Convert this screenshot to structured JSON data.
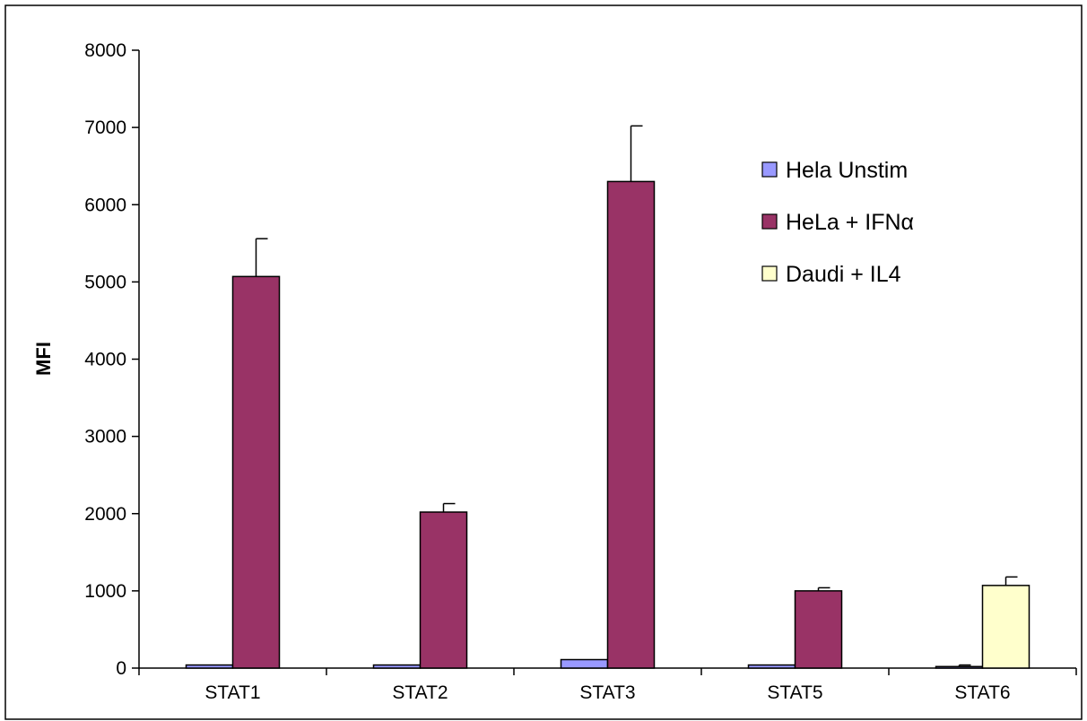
{
  "chart_data": {
    "type": "bar",
    "title": "",
    "xlabel": "",
    "ylabel": "MFI",
    "ylim": [
      0,
      8000
    ],
    "y_ticks": [
      0,
      1000,
      2000,
      3000,
      4000,
      5000,
      6000,
      7000,
      8000
    ],
    "grid": false,
    "legend_position": "top-right",
    "categories": [
      "STAT1",
      "STAT2",
      "STAT3",
      "STAT5",
      "STAT6"
    ],
    "series": [
      {
        "name": "Hela Unstim",
        "color": "#9999ff",
        "values": [
          40,
          40,
          110,
          40,
          20
        ],
        "errors": [
          0,
          0,
          0,
          0,
          20
        ]
      },
      {
        "name": "HeLa + IFNα",
        "color": "#993366",
        "values": [
          5070,
          2020,
          6300,
          1000,
          null
        ],
        "errors": [
          490,
          110,
          720,
          40,
          null
        ]
      },
      {
        "name": "Daudi + IL4",
        "color": "#ffffcc",
        "values": [
          null,
          null,
          null,
          null,
          1070
        ],
        "errors": [
          null,
          null,
          null,
          null,
          110
        ]
      }
    ]
  }
}
